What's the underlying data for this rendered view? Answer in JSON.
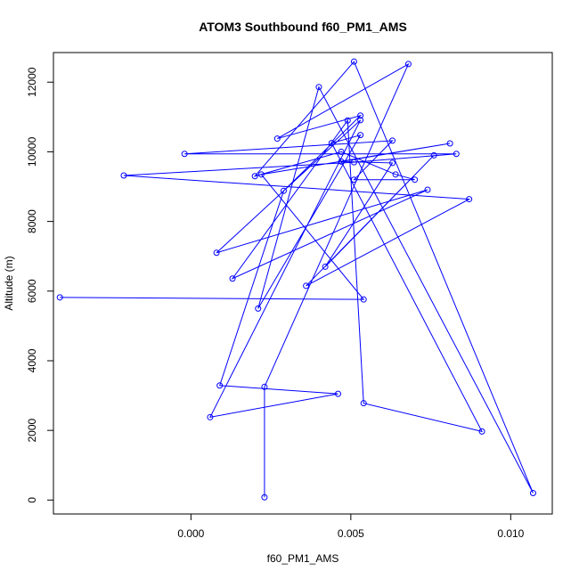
{
  "chart_data": {
    "type": "line",
    "title": "ATOM3 Southbound f60_PM1_AMS",
    "xlabel": "f60_PM1_AMS",
    "ylabel": "Altitude (m)",
    "xlim": [
      -0.0043,
      0.0113
    ],
    "ylim": [
      -400,
      12850
    ],
    "x_ticks": [
      0.0,
      0.005,
      0.01
    ],
    "x_tick_labels": [
      "0.000",
      "0.005",
      "0.010"
    ],
    "y_ticks": [
      0,
      2000,
      4000,
      6000,
      8000,
      10000,
      12000
    ],
    "y_tick_labels": [
      "0",
      "2000",
      "4000",
      "6000",
      "8000",
      "10000",
      "12000"
    ],
    "grid": false,
    "series": [
      {
        "color": "#0000ff",
        "marker": "open-circle",
        "x": [
          0.0023,
          0.0023,
          0.0068,
          0.0027,
          0.0053,
          0.0029,
          0.0009,
          0.0046,
          0.0006,
          0.0053,
          0.0008,
          0.0074,
          0.0013,
          0.0049,
          0.0054,
          0.0091,
          0.0044,
          0.0053,
          0.0021,
          0.004,
          0.0107,
          0.0051,
          0.002,
          0.0047,
          0.0064,
          0.007,
          0.0051,
          0.0063,
          -0.0002,
          0.0083,
          0.0051,
          -0.0021,
          0.0087,
          0.0036,
          0.0076,
          0.0042,
          0.0063,
          0.0047,
          0.0081,
          0.0022,
          0.0054,
          -0.0041
        ],
        "y": [
          80,
          3250,
          12520,
          10380,
          11040,
          8880,
          3290,
          3050,
          2380,
          10910,
          7100,
          8910,
          6360,
          10900,
          2780,
          1970,
          10250,
          10480,
          5500,
          11860,
          200,
          12590,
          9300,
          10000,
          9350,
          9200,
          9200,
          10320,
          9940,
          9940,
          9700,
          9320,
          8640,
          6150,
          9900,
          6700,
          9680,
          9720,
          10240,
          9350,
          5760,
          5820
        ]
      }
    ]
  }
}
